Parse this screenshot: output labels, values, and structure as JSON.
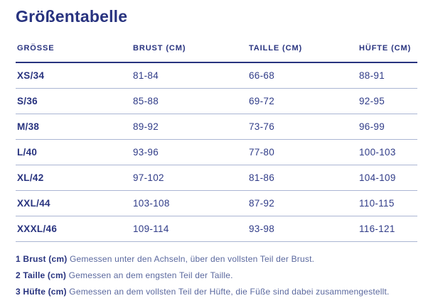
{
  "page": {
    "title": "Größentabelle"
  },
  "table": {
    "columns": [
      "GRÖSSE",
      "BRUST (CM)",
      "TAILLE (CM)",
      "HÜFTE (CM)"
    ],
    "rows": [
      [
        "XS/34",
        "81-84",
        "66-68",
        "88-91"
      ],
      [
        "S/36",
        "85-88",
        "69-72",
        "92-95"
      ],
      [
        "M/38",
        "89-92",
        "73-76",
        "96-99"
      ],
      [
        "L/40",
        "93-96",
        "77-80",
        "100-103"
      ],
      [
        "XL/42",
        "97-102",
        "81-86",
        "104-109"
      ],
      [
        "XXL/44",
        "103-108",
        "87-92",
        "110-115"
      ],
      [
        "XXXL/46",
        "109-114",
        "93-98",
        "116-121"
      ]
    ]
  },
  "notes": [
    {
      "label": "1 Brust (cm)",
      "text": "Gemessen unter den Achseln, über den vollsten Teil der Brust."
    },
    {
      "label": "2 Taille (cm)",
      "text": "Gemessen an dem engsten Teil der Taille."
    },
    {
      "label": "3 Hüfte (cm)",
      "text": "Gemessen an dem vollsten Teil der Hüfte, die Füße sind dabei zusammengestellt."
    }
  ],
  "colors": {
    "navy": "#28337f",
    "value_text": "#303c88",
    "separator": "#aab5d3",
    "note_text": "#5a689e"
  }
}
